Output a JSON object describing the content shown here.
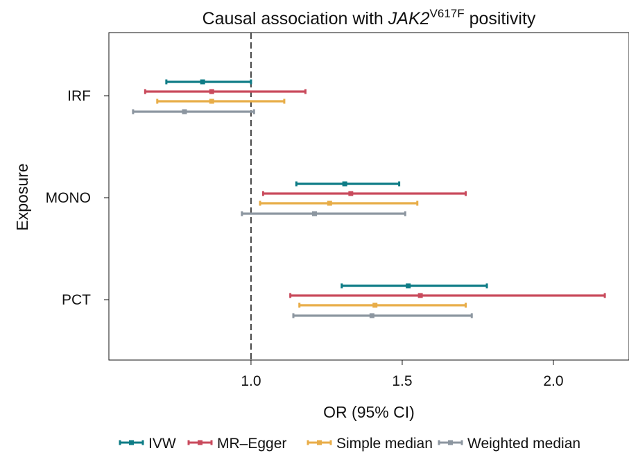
{
  "chart_data": {
    "type": "forest",
    "title": {
      "prefix": "Causal association with ",
      "gene": "JAK2",
      "superscript": "V617F",
      "suffix": " positivity"
    },
    "xlabel": "OR (95% CI)",
    "ylabel": "Exposure",
    "xlim": [
      0.53,
      2.25
    ],
    "xticks": [
      {
        "value": 1.0,
        "label": "1.0"
      },
      {
        "value": 1.5,
        "label": "1.5"
      },
      {
        "value": 2.0,
        "label": "2.0"
      }
    ],
    "reference_line": 1.0,
    "categories": [
      "IRF",
      "MONO",
      "PCT"
    ],
    "series": [
      {
        "name": "IVW",
        "color": "#0e7c86",
        "points": [
          {
            "category": "IRF",
            "or": 0.84,
            "lower": 0.72,
            "upper": 1.0
          },
          {
            "category": "MONO",
            "or": 1.31,
            "lower": 1.15,
            "upper": 1.49
          },
          {
            "category": "PCT",
            "or": 1.52,
            "lower": 1.3,
            "upper": 1.78
          }
        ]
      },
      {
        "name": "MR–Egger",
        "color": "#c94a5c",
        "points": [
          {
            "category": "IRF",
            "or": 0.87,
            "lower": 0.65,
            "upper": 1.18
          },
          {
            "category": "MONO",
            "or": 1.33,
            "lower": 1.04,
            "upper": 1.71
          },
          {
            "category": "PCT",
            "or": 1.56,
            "lower": 1.13,
            "upper": 2.17
          }
        ]
      },
      {
        "name": "Simple median",
        "color": "#e8ad48",
        "points": [
          {
            "category": "IRF",
            "or": 0.87,
            "lower": 0.69,
            "upper": 1.11
          },
          {
            "category": "MONO",
            "or": 1.26,
            "lower": 1.03,
            "upper": 1.55
          },
          {
            "category": "PCT",
            "or": 1.41,
            "lower": 1.16,
            "upper": 1.71
          }
        ]
      },
      {
        "name": "Weighted median",
        "color": "#8c96a0",
        "points": [
          {
            "category": "IRF",
            "or": 0.78,
            "lower": 0.61,
            "upper": 1.01
          },
          {
            "category": "MONO",
            "or": 1.21,
            "lower": 0.97,
            "upper": 1.51
          },
          {
            "category": "PCT",
            "or": 1.4,
            "lower": 1.14,
            "upper": 1.73
          }
        ]
      }
    ],
    "legend": "bottom"
  }
}
